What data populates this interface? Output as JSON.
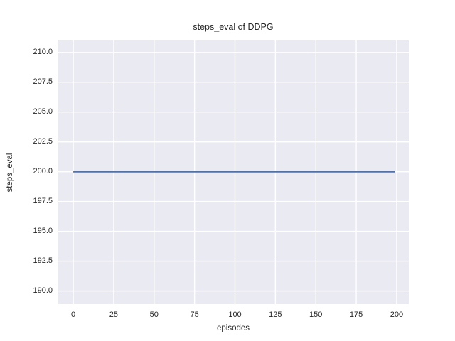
{
  "colors": {
    "figure_background": "#ffffff",
    "axes_background": "#eaeaf2",
    "grid": "#ffffff",
    "text": "#262626",
    "line": "#4c72b0"
  },
  "chart_data": {
    "type": "line",
    "title": "steps_eval of DDPG",
    "xlabel": "episodes",
    "ylabel": "steps_eval",
    "xlim": [
      -9.7,
      207.5
    ],
    "ylim": [
      188.9,
      211.0
    ],
    "grid": true,
    "legend": false,
    "x_tick_values": [
      0,
      25,
      50,
      75,
      100,
      125,
      150,
      175,
      200
    ],
    "x_tick_labels": [
      "0",
      "25",
      "50",
      "75",
      "100",
      "125",
      "150",
      "175",
      "200"
    ],
    "y_tick_values": [
      190.0,
      192.5,
      195.0,
      197.5,
      200.0,
      202.5,
      205.0,
      207.5,
      210.0
    ],
    "y_tick_labels": [
      "190.0",
      "192.5",
      "195.0",
      "197.5",
      "200.0",
      "202.5",
      "205.0",
      "207.5",
      "210.0"
    ],
    "series": [
      {
        "name": "steps_eval",
        "color": "#4c72b0",
        "x": [
          0,
          199
        ],
        "y": [
          200,
          200
        ],
        "note": "constant value 200 across all episodes 0-199"
      }
    ]
  }
}
